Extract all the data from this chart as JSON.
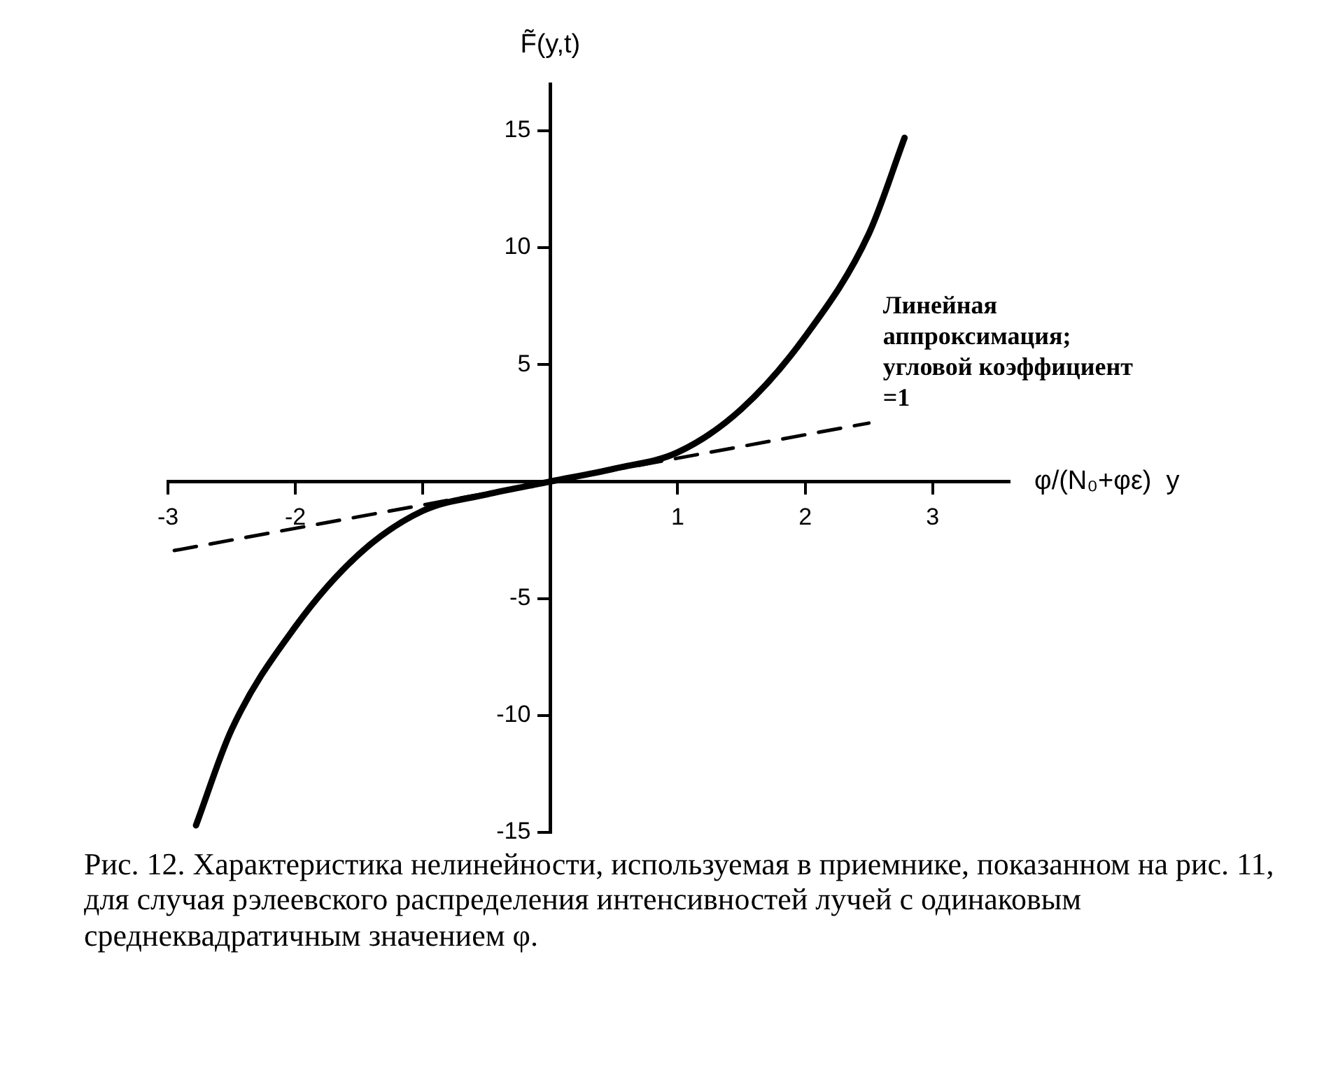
{
  "chart_data": {
    "type": "line",
    "ylabel": "F̃(y,t)",
    "xlabel": "φ/(N₀+φε)  y",
    "xlim": [
      -3,
      3.6
    ],
    "ylim": [
      -15,
      17
    ],
    "xticks": [
      -3,
      -2,
      {
        "value": -1,
        "label": null
      },
      1,
      2,
      3
    ],
    "yticks": [
      -15,
      -10,
      -5,
      5,
      10,
      15
    ],
    "series": [
      {
        "color": "#000000",
        "line_style": "solid",
        "x": [
          -2.78,
          -2.5,
          -2,
          -1.5,
          -1,
          -0.5,
          0,
          0.5,
          1,
          1.5,
          2,
          2.5,
          2.78
        ],
        "values": [
          -14.7,
          -10.6,
          -6.2,
          -3.1,
          -1.25,
          -0.55,
          0,
          0.55,
          1.25,
          3.1,
          6.2,
          10.6,
          14.7
        ]
      },
      {
        "color": "#000000",
        "line_style": "dashed",
        "x": [
          -2.95,
          2.5
        ],
        "values": [
          -2.95,
          2.5
        ]
      }
    ],
    "marker": "none",
    "legend": false,
    "annotations": [
      {
        "text": "Линейная аппроксимация; угловой коэффициент =1",
        "x": 2.5,
        "y": 2.5
      },
      "Рис. 12. Характеристика нелинейности, используемая в приемнике, показанном на рис. 11, для случая рэлеевского распределения интенсивностей лучей с одинаковым среднеквадратичным значением φ."
    ]
  }
}
